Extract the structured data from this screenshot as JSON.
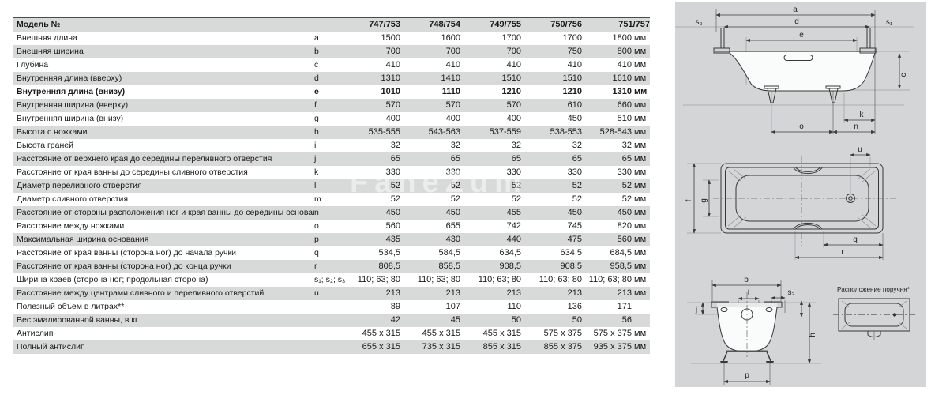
{
  "table": {
    "header": {
      "label": "Модель №",
      "models": [
        "747/753",
        "748/754",
        "749/755",
        "750/756",
        "751/757"
      ]
    },
    "rows": [
      {
        "label": "Внешняя длина",
        "letter": "a",
        "values": [
          "1500",
          "1600",
          "1700",
          "1700",
          "1800"
        ],
        "unit": "мм",
        "bold": false
      },
      {
        "label": "Внешняя ширина",
        "letter": "b",
        "values": [
          "700",
          "700",
          "700",
          "750",
          "800"
        ],
        "unit": "мм",
        "bold": false
      },
      {
        "label": "Глубина",
        "letter": "c",
        "values": [
          "410",
          "410",
          "410",
          "410",
          "410"
        ],
        "unit": "мм",
        "bold": false
      },
      {
        "label": "Внутренняя длина (вверху)",
        "letter": "d",
        "values": [
          "1310",
          "1410",
          "1510",
          "1510",
          "1610"
        ],
        "unit": "мм",
        "bold": false
      },
      {
        "label": "Внутренняя длина (внизу)",
        "letter": "e",
        "values": [
          "1010",
          "1110",
          "1210",
          "1210",
          "1310"
        ],
        "unit": "мм",
        "bold": true
      },
      {
        "label": "Внутренняя ширина (вверху)",
        "letter": "f",
        "values": [
          "570",
          "570",
          "570",
          "610",
          "660"
        ],
        "unit": "мм",
        "bold": false
      },
      {
        "label": "Внутренняя ширина (внизу)",
        "letter": "g",
        "values": [
          "400",
          "400",
          "400",
          "450",
          "510"
        ],
        "unit": "мм",
        "bold": false
      },
      {
        "label": "Высота с ножками",
        "letter": "h",
        "values": [
          "535-555",
          "543-563",
          "537-559",
          "538-553",
          "528-543"
        ],
        "unit": "мм",
        "bold": false
      },
      {
        "label": "Высота граней",
        "letter": "i",
        "values": [
          "32",
          "32",
          "32",
          "32",
          "32"
        ],
        "unit": "мм",
        "bold": false
      },
      {
        "label": "Расстояние от верхнего края до середины переливного отверстия",
        "letter": "j",
        "values": [
          "65",
          "65",
          "65",
          "65",
          "65"
        ],
        "unit": "мм",
        "bold": false
      },
      {
        "label": "Расстояние от края ванны до середины сливного отверстия",
        "letter": "k",
        "values": [
          "330",
          "330",
          "330",
          "330",
          "330"
        ],
        "unit": "мм",
        "bold": false
      },
      {
        "label": "Диаметр переливного отверстия",
        "letter": "l",
        "values": [
          "52",
          "52",
          "52",
          "52",
          "52"
        ],
        "unit": "мм",
        "bold": false
      },
      {
        "label": "Диаметр сливного отверстия",
        "letter": "m",
        "values": [
          "52",
          "52",
          "52",
          "52",
          "52"
        ],
        "unit": "мм",
        "bold": false
      },
      {
        "label": "Расстояние от стороны расположения ног и края ванны до середины основания",
        "letter": "n",
        "values": [
          "450",
          "450",
          "455",
          "450",
          "450"
        ],
        "unit": "мм",
        "bold": false
      },
      {
        "label": "Расстояние между ножками",
        "letter": "o",
        "values": [
          "560",
          "655",
          "742",
          "745",
          "820"
        ],
        "unit": "мм",
        "bold": false
      },
      {
        "label": "Максимальная ширина основания",
        "letter": "p",
        "values": [
          "435",
          "430",
          "440",
          "475",
          "560"
        ],
        "unit": "мм",
        "bold": false
      },
      {
        "label": "Расстояние от края ванны (сторона ног) до начала ручки",
        "letter": "q",
        "values": [
          "534,5",
          "584,5",
          "634,5",
          "634,5",
          "684,5"
        ],
        "unit": "мм",
        "bold": false
      },
      {
        "label": "Расстояние от края ванны (сторона ног) до конца ручки",
        "letter": "r",
        "values": [
          "808,5",
          "858,5",
          "908,5",
          "908,5",
          "958,5"
        ],
        "unit": "мм",
        "bold": false
      },
      {
        "label": "Ширина краев (сторона ног; продольная сторона)",
        "letter": "s₁; s₂; s₃",
        "values": [
          "110; 63; 80",
          "110; 63; 80",
          "110; 63; 80",
          "110; 63; 80",
          "110; 63; 80"
        ],
        "unit": "мм",
        "bold": false
      },
      {
        "label": "Расстояние между центрами сливного и переливного отверстий",
        "letter": "u",
        "values": [
          "213",
          "213",
          "213",
          "213",
          "213"
        ],
        "unit": "мм",
        "bold": false
      },
      {
        "label": "Полезный объем в литрах**",
        "letter": "",
        "values": [
          "89",
          "107",
          "110",
          "136",
          "171"
        ],
        "unit": "",
        "bold": false
      },
      {
        "label": "Вес эмалированной ванны, в кг",
        "letter": "",
        "values": [
          "42",
          "45",
          "50",
          "50",
          "56"
        ],
        "unit": "",
        "bold": false
      },
      {
        "label": "Антислип",
        "letter": "",
        "values": [
          "455 x 315",
          "455 x 315",
          "455 x 315",
          "575 x 375",
          "575 x 375"
        ],
        "unit": "мм",
        "bold": false
      },
      {
        "label": "Полный антислип",
        "letter": "",
        "values": [
          "655 x 315",
          "735 x 315",
          "855 x 315",
          "855 x 375",
          "935 x 375"
        ],
        "unit": "мм",
        "bold": false
      }
    ]
  },
  "diagrams": {
    "side": {
      "a": "a",
      "d": "d",
      "e": "e",
      "s3": "s₃",
      "s1": "s₁",
      "c": "c",
      "k": "k",
      "o": "o",
      "n": "n"
    },
    "top": {
      "u": "u",
      "f": "f",
      "g": "g",
      "q": "q",
      "r": "r"
    },
    "end": {
      "b": "b",
      "l": "l",
      "s2": "s₂",
      "j": "j",
      "h": "h",
      "p": "p"
    },
    "handle_caption": "Расположение поручня*"
  },
  "watermark": "FaneZum"
}
